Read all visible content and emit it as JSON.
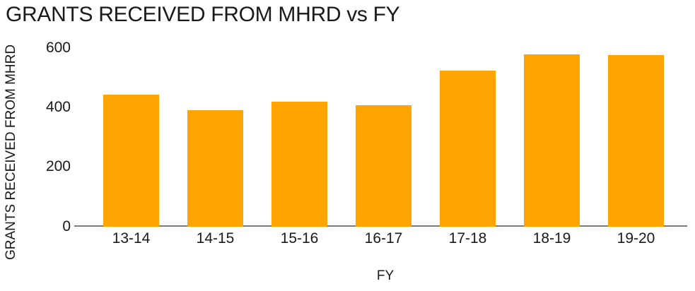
{
  "chart_data": {
    "type": "bar",
    "title": "GRANTS RECEIVED FROM MHRD vs FY",
    "xlabel": "FY",
    "ylabel": "GRANTS RECEIVED FROM MHRD",
    "categories": [
      "13-14",
      "14-15",
      "15-16",
      "16-17",
      "17-18",
      "18-19",
      "19-20"
    ],
    "values": [
      442,
      388,
      417,
      405,
      521,
      577,
      573
    ],
    "yticks": [
      0,
      200,
      400,
      600
    ],
    "ylim": [
      0,
      600
    ],
    "grid": false,
    "legend": false,
    "bar_color": "#ffa400",
    "axis_line_color": "#7a7a7a",
    "text_color": "#1a1a1a",
    "background_color": "#ffffff"
  }
}
